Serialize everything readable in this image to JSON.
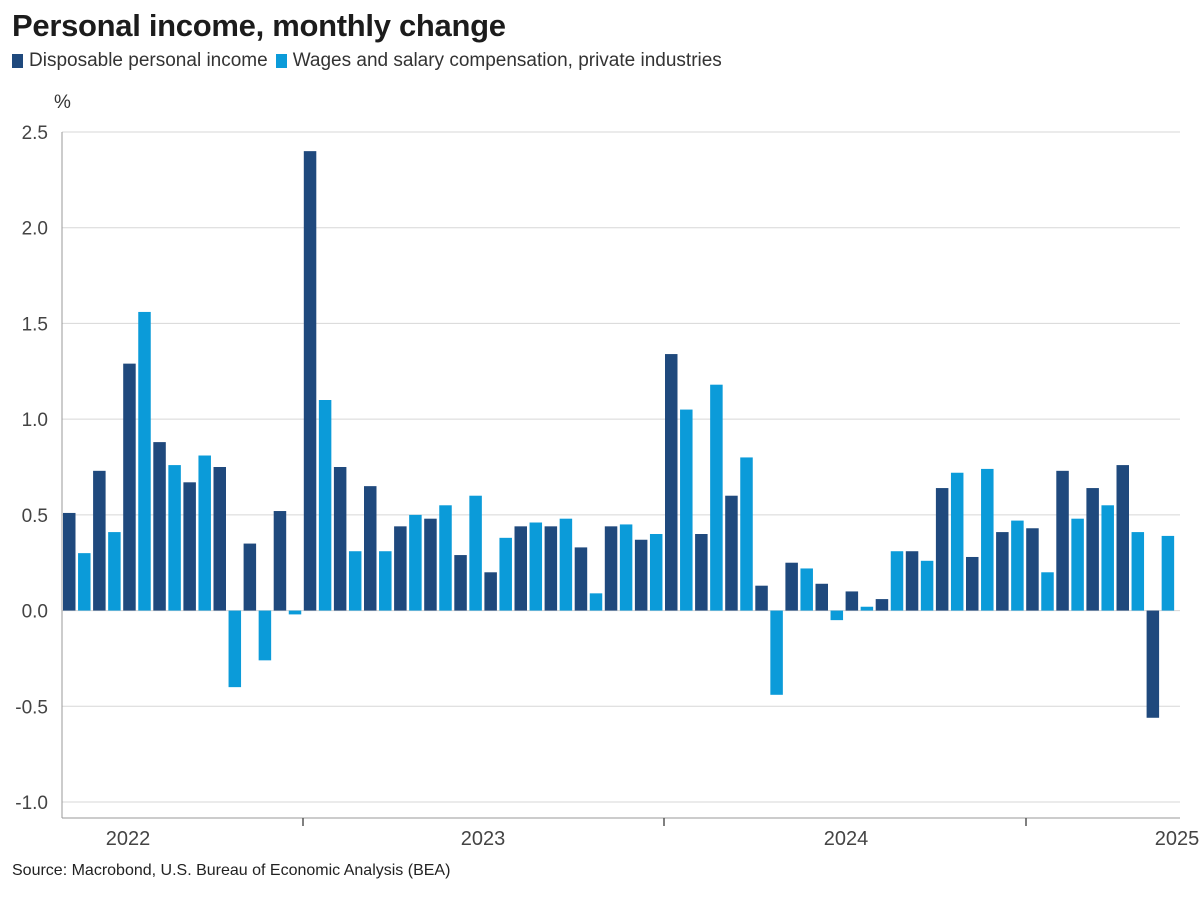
{
  "title": "Personal income, monthly change",
  "source": "Source: Macrobond, U.S. Bureau of Economic Analysis (BEA)",
  "colors": {
    "dark": "#1f497d",
    "light": "#0b9bd9",
    "grid": "#d7d7d7",
    "axis": "#999999"
  },
  "chart_data": {
    "type": "bar",
    "ylabel": "%",
    "ylim": [
      -1.0,
      2.5
    ],
    "yticks": [
      2.5,
      2.0,
      1.5,
      1.0,
      0.5,
      0.0,
      -0.5,
      -1.0
    ],
    "ytick_labels": [
      "2.5",
      "2.0",
      "1.5",
      "1.0",
      "0.5",
      "0.0",
      "-0.5",
      "-1.0"
    ],
    "x_labels": [
      "2022",
      "2023",
      "2024",
      "2025"
    ],
    "grid": true,
    "legend_position": "top-left",
    "categories": [
      "2022-01",
      "2022-02",
      "2022-03",
      "2022-04",
      "2022-05",
      "2022-06",
      "2022-07",
      "2022-08",
      "2022-09",
      "2022-10",
      "2022-11",
      "2022-12",
      "2023-01",
      "2023-02",
      "2023-03",
      "2023-04",
      "2023-05",
      "2023-06",
      "2023-07",
      "2023-08",
      "2023-09",
      "2023-10",
      "2023-11",
      "2023-12",
      "2024-01",
      "2024-02",
      "2024-03",
      "2024-04",
      "2024-05",
      "2024-06",
      "2024-07",
      "2024-08",
      "2024-09",
      "2024-10",
      "2024-11",
      "2024-12",
      "2025-01"
    ],
    "series": [
      {
        "name": "Disposable personal income",
        "color": "#1f497d",
        "values": [
          0.51,
          0.73,
          1.29,
          0.88,
          0.67,
          0.75,
          0.35,
          0.52,
          2.4,
          0.75,
          0.65,
          0.44,
          0.48,
          0.29,
          0.2,
          0.44,
          0.44,
          0.33,
          0.44,
          0.37,
          1.34,
          0.4,
          0.6,
          0.13,
          0.25,
          0.14,
          0.1,
          0.06,
          0.31,
          0.64,
          0.28,
          0.41,
          0.43,
          0.73,
          0.64,
          0.76,
          -0.56
        ]
      },
      {
        "name": "Wages and salary compensation, private industries",
        "color": "#0b9bd9",
        "values": [
          0.3,
          0.41,
          1.56,
          0.76,
          0.81,
          -0.4,
          -0.26,
          -0.02,
          1.1,
          0.31,
          0.31,
          0.5,
          0.55,
          0.6,
          0.38,
          0.46,
          0.48,
          0.09,
          0.45,
          0.4,
          1.05,
          1.18,
          0.8,
          -0.44,
          0.22,
          -0.05,
          0.02,
          0.31,
          0.26,
          0.72,
          0.74,
          0.47,
          0.2,
          0.48,
          0.55,
          0.41,
          0.39
        ]
      }
    ]
  }
}
